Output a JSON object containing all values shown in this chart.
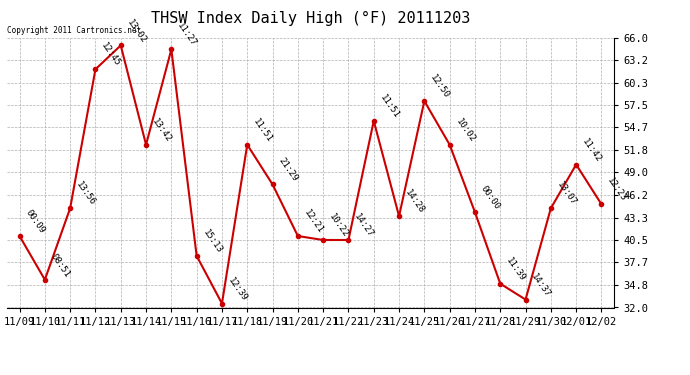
{
  "title": "THSW Index Daily High (°F) 20111203",
  "copyright": "Copyright 2011 Cartronics.net",
  "dates": [
    "11/09",
    "11/10",
    "11/11",
    "11/12",
    "11/13",
    "11/14",
    "11/15",
    "11/16",
    "11/17",
    "11/18",
    "11/19",
    "11/20",
    "11/21",
    "11/22",
    "11/23",
    "11/24",
    "11/25",
    "11/26",
    "11/27",
    "11/28",
    "11/29",
    "11/30",
    "12/01",
    "12/02"
  ],
  "values": [
    41.0,
    35.5,
    44.5,
    62.0,
    65.0,
    52.5,
    64.5,
    38.5,
    32.5,
    52.5,
    47.5,
    41.0,
    40.5,
    40.5,
    55.5,
    43.5,
    58.0,
    52.5,
    44.0,
    35.0,
    33.0,
    44.5,
    50.0,
    45.0
  ],
  "labels": [
    "00:09",
    "08:51",
    "13:56",
    "12:45",
    "13:02",
    "13:42",
    "11:27",
    "15:13",
    "12:39",
    "11:51",
    "21:29",
    "12:21",
    "10:22",
    "14:27",
    "11:51",
    "14:28",
    "12:50",
    "10:02",
    "00:00",
    "11:39",
    "14:37",
    "13:07",
    "11:42",
    "12:23"
  ],
  "ylim": [
    32.0,
    66.0
  ],
  "yticks": [
    32.0,
    34.8,
    37.7,
    40.5,
    43.3,
    46.2,
    49.0,
    51.8,
    54.7,
    57.5,
    60.3,
    63.2,
    66.0
  ],
  "line_color": "#cc0000",
  "marker_color": "#cc0000",
  "bg_color": "#ffffff",
  "grid_color": "#b0b0b0",
  "title_fontsize": 11,
  "label_fontsize": 6.5,
  "tick_fontsize": 7.5
}
